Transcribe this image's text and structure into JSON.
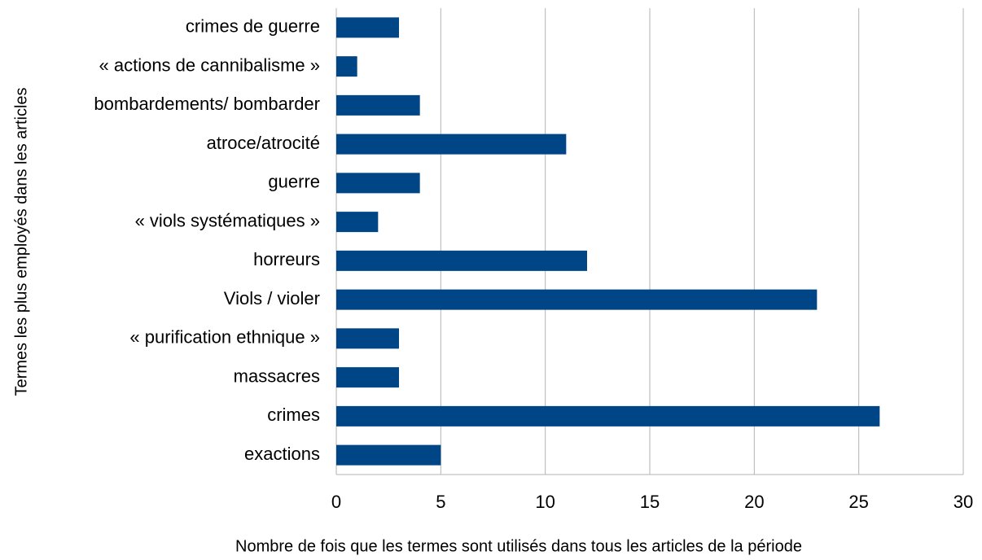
{
  "chart_data": {
    "type": "barh",
    "categories": [
      "crimes de guerre",
      "« actions de cannibalisme »",
      "bombardements/ bombarder",
      "atroce/atrocité",
      "guerre",
      "« viols systématiques »",
      "horreurs",
      "Viols / violer",
      "« purification ethnique »",
      "massacres",
      "crimes",
      "exactions"
    ],
    "values": [
      3,
      1,
      4,
      11,
      4,
      2,
      12,
      23,
      3,
      3,
      26,
      5
    ],
    "color": "#004586",
    "xlim": [
      0,
      30
    ],
    "xticks": [
      0,
      5,
      10,
      15,
      20,
      25,
      30
    ],
    "grid": true,
    "x_label": "Nombre de fois que les termes sont utilisés dans tous les articles de la période",
    "y_label": "Termes les plus employés dans les articles"
  }
}
